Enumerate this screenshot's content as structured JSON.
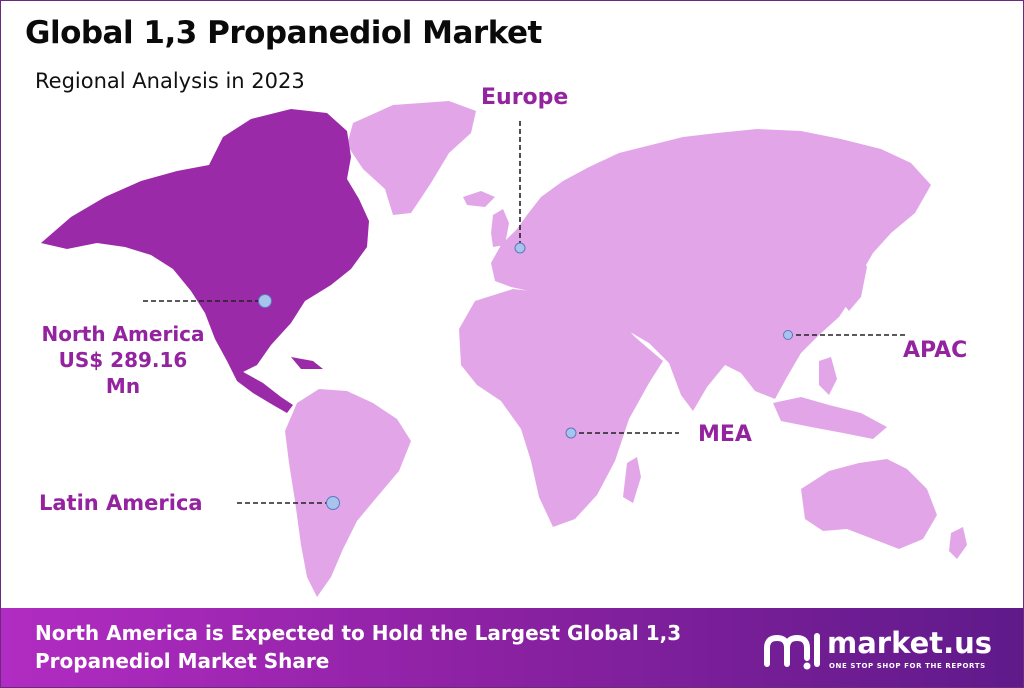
{
  "header": {
    "title": "Global 1,3 Propanediol Market",
    "subtitle": "Regional Analysis in 2023"
  },
  "map": {
    "regions": [
      {
        "id": "north-america",
        "label": "North America",
        "value_line1": "US$ 289.16",
        "value_line2": "Mn",
        "highlighted": true
      },
      {
        "id": "europe",
        "label": "Europe",
        "highlighted": false
      },
      {
        "id": "apac",
        "label": "APAC",
        "highlighted": false
      },
      {
        "id": "mea",
        "label": "MEA",
        "highlighted": false
      },
      {
        "id": "latin-america",
        "label": "Latin America",
        "highlighted": false
      }
    ],
    "colors": {
      "highlight_fill": "#9a2aa8",
      "region_fill": "#e2a6e8",
      "label_text": "#93239f",
      "marker": "#a8c4ec"
    }
  },
  "banner": {
    "text": "North America is Expected to Hold the Largest Global 1,3 Propanediol Market Share",
    "gradient": [
      "#b12cc2",
      "#5f1a8a"
    ]
  },
  "brand": {
    "name": "market.us",
    "tagline": "ONE STOP SHOP FOR THE REPORTS"
  }
}
